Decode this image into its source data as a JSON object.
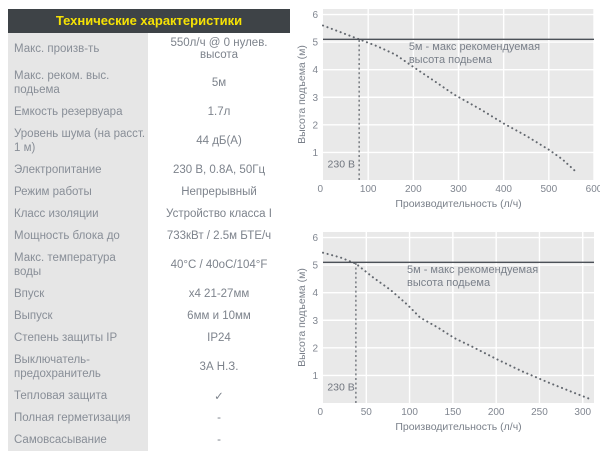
{
  "header": {
    "title": "Технические характеристики"
  },
  "table": {
    "rows": [
      {
        "label": "Макс. произв-ть",
        "value": "550л/ч @ 0 нулев. высота"
      },
      {
        "label": "Макс. реком. выс. подьема",
        "value": "5м"
      },
      {
        "label": "Емкость резервуара",
        "value": "1.7л"
      },
      {
        "label": "Уровень шума (на расст. 1 м)",
        "value": "44 дБ(А)"
      },
      {
        "label": "Электропитание",
        "value": "230 В, 0.8А, 50Гц"
      },
      {
        "label": "Режим работы",
        "value": "Непрерывный"
      },
      {
        "label": "Класс изоляции",
        "value": "Устройство класса I"
      },
      {
        "label": "Мощность блока до",
        "value": "733кВт / 2.5м БТЕ/ч"
      },
      {
        "label": "Макс. температура воды",
        "value": "40°C / 40оС/104°F"
      },
      {
        "label": "Впуск",
        "value": "х4 21-27мм"
      },
      {
        "label": "Выпуск",
        "value": "6мм и 10мм"
      },
      {
        "label": "Степень защиты IP",
        "value": "IP24"
      },
      {
        "label": "Выключатель-предохранитель",
        "value": "3А Н.З."
      },
      {
        "label": "Тепловая защита",
        "value": "✓"
      },
      {
        "label": "Полная герметизация",
        "value": "-"
      },
      {
        "label": "Самовсасывание",
        "value": "-"
      }
    ]
  },
  "colors": {
    "header_bg": "#3e4347",
    "header_text": "#f6e204",
    "label_bg": "#e6e6e6",
    "plot_bg": "#e9e9e9",
    "grid": "#ffffff",
    "curve": "#63686f",
    "max_line": "#4c5158",
    "dashed_line": "#5a5f66",
    "tick_text": "#808690"
  },
  "chart_data": [
    {
      "type": "line",
      "name": "performance-curve-600",
      "xlabel": "Производительность (л/ч)",
      "ylabel": "Высота подъема (м)",
      "xlim": [
        0,
        600
      ],
      "ylim": [
        0,
        6.2
      ],
      "xticks": [
        0,
        100,
        200,
        300,
        400,
        500,
        600
      ],
      "yticks": [
        1,
        2,
        3,
        4,
        5,
        6
      ],
      "grid": true,
      "series": [
        {
          "name": "230 В",
          "style": "dotted",
          "points": [
            [
              0,
              5.6
            ],
            [
              40,
              5.35
            ],
            [
              80,
              5.1
            ],
            [
              120,
              4.85
            ],
            [
              160,
              4.55
            ],
            [
              200,
              4.1
            ],
            [
              250,
              3.55
            ],
            [
              290,
              3.1
            ],
            [
              350,
              2.55
            ],
            [
              400,
              2.05
            ],
            [
              450,
              1.6
            ],
            [
              500,
              1.1
            ],
            [
              530,
              0.75
            ],
            [
              560,
              0.3
            ]
          ]
        }
      ],
      "max_line": {
        "y": 5.1,
        "label_lines": [
          "5м - макс рекомендуемая",
          "высота подьема"
        ],
        "label_x": 190,
        "label_y": 4.72
      },
      "voltage_line": {
        "x": 80,
        "label": "230 В",
        "label_x": 10,
        "label_y": 0.45
      }
    },
    {
      "type": "line",
      "name": "performance-curve-300",
      "xlabel": "Производительность (л/ч)",
      "ylabel": "Высота подъема (м)",
      "xlim": [
        0,
        313
      ],
      "ylim": [
        0,
        6.2
      ],
      "xticks": [
        0,
        50,
        100,
        150,
        200,
        250,
        300
      ],
      "yticks": [
        1,
        2,
        3,
        4,
        5,
        6
      ],
      "grid": true,
      "series": [
        {
          "name": "230 В",
          "style": "dotted",
          "points": [
            [
              0,
              5.45
            ],
            [
              20,
              5.28
            ],
            [
              38,
              5.05
            ],
            [
              58,
              4.55
            ],
            [
              78,
              4.1
            ],
            [
              98,
              3.55
            ],
            [
              112,
              3.1
            ],
            [
              132,
              2.75
            ],
            [
              152,
              2.35
            ],
            [
              172,
              2.05
            ],
            [
              200,
              1.6
            ],
            [
              230,
              1.15
            ],
            [
              262,
              0.72
            ],
            [
              286,
              0.42
            ],
            [
              308,
              0.15
            ]
          ]
        }
      ],
      "max_line": {
        "y": 5.1,
        "label_lines": [
          "5м - макс рекомендуемая",
          "высота подьема"
        ],
        "label_x": 97,
        "label_y": 4.72
      },
      "voltage_line": {
        "x": 38,
        "label": "230 В",
        "label_x": 5,
        "label_y": 0.45
      }
    }
  ]
}
